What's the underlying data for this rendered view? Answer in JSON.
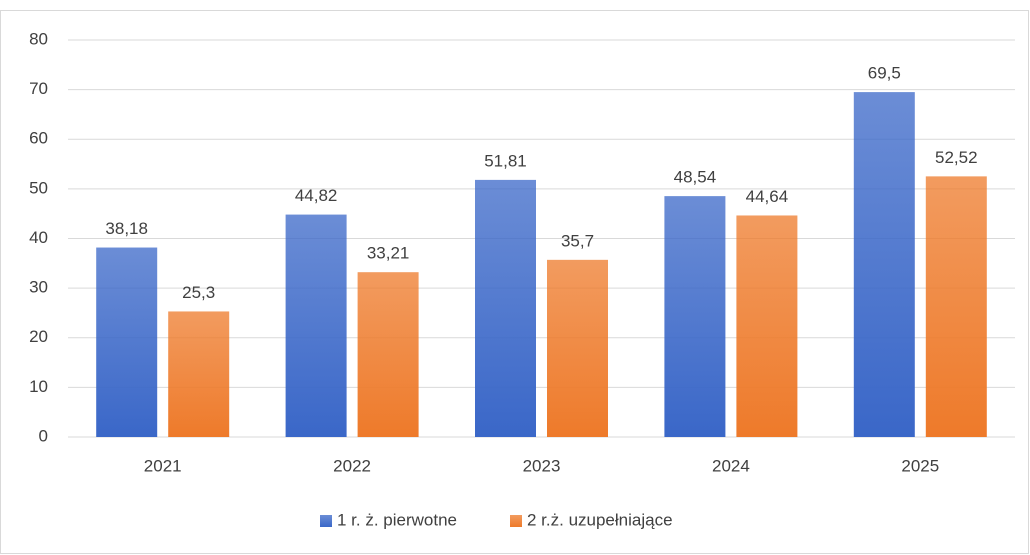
{
  "chart_data": {
    "type": "bar",
    "categories": [
      "2021",
      "2022",
      "2023",
      "2024",
      "2025"
    ],
    "series": [
      {
        "name": "1 r. ż. pierwotne",
        "color": "#3a67c8",
        "values": [
          38.18,
          44.82,
          51.81,
          48.54,
          69.5
        ],
        "value_labels": [
          "38,18",
          "44,82",
          "51,81",
          "48,54",
          "69,5"
        ]
      },
      {
        "name": "2 r.ż. uzupełniające",
        "color": "#ee7a2a",
        "values": [
          25.3,
          33.21,
          35.7,
          44.64,
          52.52
        ],
        "value_labels": [
          "25,3",
          "33,21",
          "35,7",
          "44,64",
          "52,52"
        ]
      }
    ],
    "ylim": [
      0,
      80
    ],
    "yticks": [
      0,
      10,
      20,
      30,
      40,
      50,
      60,
      70,
      80
    ],
    "grid": true,
    "legend": "bottom"
  }
}
